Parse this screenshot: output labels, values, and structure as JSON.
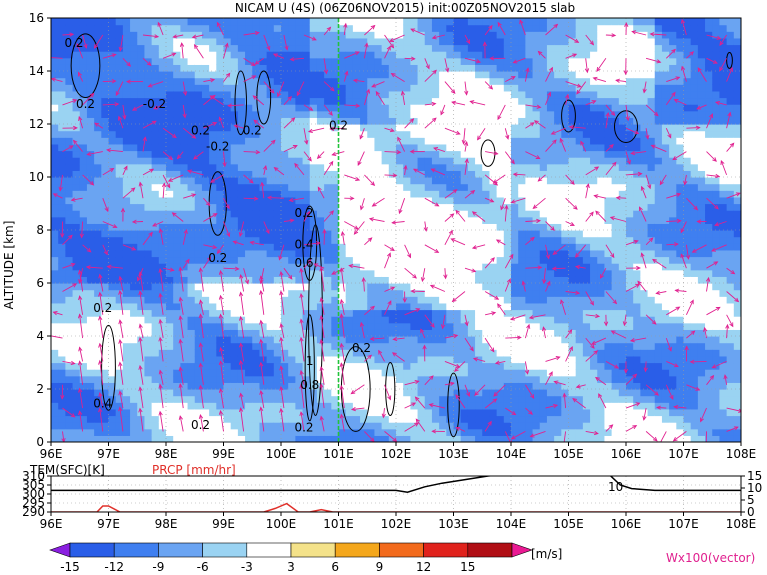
{
  "chart_data": [
    {
      "type": "heatmap",
      "title": "NICAM U (4S) (06Z06NOV2015) init:00Z05NOV2015 slab",
      "xlabel": "",
      "ylabel": "ALTITUDE [km]",
      "x_ticks": [
        "96E",
        "97E",
        "98E",
        "99E",
        "100E",
        "101E",
        "102E",
        "103E",
        "104E",
        "105E",
        "106E",
        "107E",
        "108E"
      ],
      "x_range": [
        96,
        108
      ],
      "y_ticks": [
        "0",
        "2",
        "4",
        "6",
        "8",
        "10",
        "12",
        "14",
        "16"
      ],
      "ylim": [
        0,
        16
      ],
      "grid": true,
      "marker_line_x": 101,
      "contour_labels": [
        {
          "text": "0.2",
          "x": 96.4,
          "y": 14.9
        },
        {
          "text": "0.2",
          "x": 96.6,
          "y": 12.6
        },
        {
          "text": "-0.2",
          "x": 97.8,
          "y": 12.6
        },
        {
          "text": "0.2",
          "x": 98.6,
          "y": 11.6
        },
        {
          "text": "-0.2",
          "x": 98.9,
          "y": 11.0
        },
        {
          "text": "0.2",
          "x": 99.5,
          "y": 11.6
        },
        {
          "text": "0.2",
          "x": 101.0,
          "y": 11.8
        },
        {
          "text": "0.2",
          "x": 100.4,
          "y": 8.5
        },
        {
          "text": "0.4",
          "x": 100.4,
          "y": 7.3
        },
        {
          "text": "0.6",
          "x": 100.4,
          "y": 6.6
        },
        {
          "text": "0.2",
          "x": 98.9,
          "y": 6.8
        },
        {
          "text": "0.2",
          "x": 96.9,
          "y": 4.9
        },
        {
          "text": "0.2",
          "x": 101.4,
          "y": 3.4
        },
        {
          "text": "1",
          "x": 100.5,
          "y": 2.9
        },
        {
          "text": "0.8",
          "x": 100.5,
          "y": 2.0
        },
        {
          "text": "0.4",
          "x": 96.9,
          "y": 1.3
        },
        {
          "text": "0.2",
          "x": 98.6,
          "y": 0.5
        },
        {
          "text": "0.2",
          "x": 100.4,
          "y": 0.4
        }
      ],
      "contour_extra_labels": [
        "0.2"
      ],
      "colorbar": {
        "ticks": [
          "-15",
          "-12",
          "-9",
          "-6",
          "-3",
          "3",
          "6",
          "9",
          "12",
          "15"
        ],
        "unit": "[m/s]",
        "colors": [
          "#8a1fe0",
          "#2a5ee8",
          "#3f7ff0",
          "#6aa4f2",
          "#9ad3f2",
          "#ffffff",
          "#f4e28a",
          "#f4a71c",
          "#f26a1c",
          "#e0221c",
          "#b00e14",
          "#ea1a93"
        ]
      },
      "vector_key": "Wx100(vector)"
    },
    {
      "type": "line",
      "x_ticks": [
        "96E",
        "97E",
        "98E",
        "99E",
        "100E",
        "101E",
        "102E",
        "103E",
        "104E",
        "105E",
        "106E",
        "107E",
        "108E"
      ],
      "x_range": [
        96,
        108
      ],
      "left_axis": {
        "label": "TEM(SFC)[K]",
        "ticks": [
          "290",
          "295",
          "300",
          "305",
          "310"
        ],
        "range": [
          290,
          310
        ]
      },
      "right_axis": {
        "label": "PRCP [mm/hr]",
        "ticks": [
          "0",
          "5",
          "10",
          "15"
        ],
        "range": [
          0,
          15
        ]
      },
      "series": [
        {
          "name": "TEM(SFC)[K]",
          "color": "#000000",
          "x": [
            96,
            97,
            98,
            99,
            100,
            101,
            102,
            102.2,
            102.5,
            102.8,
            103.2,
            103.6,
            103.9,
            104,
            105,
            105.7,
            105.9,
            106.1,
            106.5,
            107,
            108
          ],
          "y": [
            302,
            302,
            302,
            302,
            302,
            302,
            302,
            301,
            304,
            306,
            308,
            310,
            311,
            311,
            311,
            311,
            305,
            303,
            302,
            302,
            302
          ]
        },
        {
          "name": "PRCP [mm/hr]",
          "color": "#e0302a",
          "x": [
            96,
            96.8,
            96.9,
            97,
            97.2,
            97.5,
            99,
            99.7,
            99.9,
            100.1,
            100.3,
            100.5,
            100.7,
            100.9,
            101.1,
            102,
            108
          ],
          "y": [
            0,
            0,
            2.5,
            2.5,
            0,
            0,
            0,
            0,
            1.5,
            3.5,
            0,
            0,
            1,
            0,
            0,
            0,
            0
          ]
        }
      ],
      "annotations": [
        "10"
      ]
    }
  ]
}
